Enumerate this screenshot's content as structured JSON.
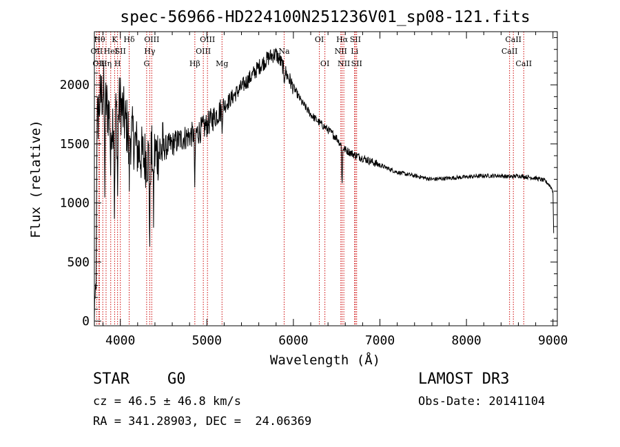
{
  "chart_data": {
    "type": "line",
    "title": "spec-56966-HD224100N251236V01_sp08-121.fits",
    "xlabel": "Wavelength (Å)",
    "ylabel": "Flux (relative)",
    "xlim": [
      3700,
      9050
    ],
    "ylim": [
      -40,
      2450
    ],
    "xticks": [
      4000,
      5000,
      6000,
      7000,
      8000,
      9000
    ],
    "yticks": [
      0,
      500,
      1000,
      1500,
      2000
    ],
    "series": [
      {
        "name": "spectrum",
        "anchors_x": [
          3700,
          3720,
          3730,
          3760,
          3800,
          3850,
          3900,
          3950,
          4000,
          4050,
          4100,
          4150,
          4200,
          4250,
          4300,
          4350,
          4400,
          4500,
          4600,
          4700,
          4800,
          4900,
          5000,
          5100,
          5200,
          5300,
          5400,
          5500,
          5600,
          5700,
          5750,
          5800,
          5850,
          5900,
          6000,
          6100,
          6200,
          6300,
          6400,
          6500,
          6560,
          6600,
          6700,
          6800,
          6900,
          7000,
          7100,
          7200,
          7400,
          7600,
          7800,
          8000,
          8200,
          8400,
          8500,
          8600,
          8700,
          8800,
          8900,
          8950,
          8980,
          9000,
          9010
        ],
        "anchors_y": [
          60,
          300,
          1650,
          1850,
          1950,
          1800,
          1700,
          1750,
          1850,
          1700,
          1600,
          1550,
          1450,
          1400,
          1380,
          1400,
          1420,
          1460,
          1500,
          1540,
          1570,
          1600,
          1660,
          1740,
          1820,
          1900,
          1980,
          2060,
          2150,
          2220,
          2250,
          2260,
          2200,
          2120,
          1980,
          1850,
          1750,
          1680,
          1620,
          1550,
          1480,
          1450,
          1410,
          1380,
          1350,
          1320,
          1290,
          1260,
          1230,
          1200,
          1210,
          1220,
          1230,
          1230,
          1220,
          1230,
          1220,
          1210,
          1190,
          1160,
          1130,
          1100,
          650
        ],
        "dips": [
          {
            "x": 3820,
            "depth": 700
          },
          {
            "x": 3889,
            "depth": 500
          },
          {
            "x": 3934,
            "depth": 900
          },
          {
            "x": 3968,
            "depth": 700
          },
          {
            "x": 4102,
            "depth": 450
          },
          {
            "x": 4340,
            "depth": 750
          },
          {
            "x": 4383,
            "depth": 550
          },
          {
            "x": 4861,
            "depth": 500
          },
          {
            "x": 5175,
            "depth": 120
          },
          {
            "x": 5893,
            "depth": 90
          },
          {
            "x": 6563,
            "depth": 350
          }
        ]
      }
    ],
    "lines": [
      {
        "x": 3727,
        "label": "OII",
        "row": 1
      },
      {
        "x": 3750,
        "label": "OII",
        "row": 2
      },
      {
        "x": 3760,
        "label": "Hθ",
        "row": 0
      },
      {
        "x": 3797,
        "label": "",
        "row": -1
      },
      {
        "x": 3835,
        "label": "Hη",
        "row": 2
      },
      {
        "x": 3889,
        "label": "HeI",
        "row": 1
      },
      {
        "x": 3934,
        "label": "K",
        "row": 0
      },
      {
        "x": 3968,
        "label": "H",
        "row": 2
      },
      {
        "x": 4000,
        "label": "SII",
        "row": 1
      },
      {
        "x": 4102,
        "label": "Hδ",
        "row": 0
      },
      {
        "x": 4304,
        "label": "G",
        "row": 2
      },
      {
        "x": 4340,
        "label": "Hγ",
        "row": 1
      },
      {
        "x": 4363,
        "label": "OIII",
        "row": 0
      },
      {
        "x": 4861,
        "label": "Hβ",
        "row": 2
      },
      {
        "x": 4959,
        "label": "OIII",
        "row": 1
      },
      {
        "x": 5007,
        "label": "OIII",
        "row": 0
      },
      {
        "x": 5175,
        "label": "Mg",
        "row": 2
      },
      {
        "x": 5893,
        "label": "Na",
        "row": 1
      },
      {
        "x": 6300,
        "label": "OI",
        "row": 0
      },
      {
        "x": 6364,
        "label": "OI",
        "row": 2
      },
      {
        "x": 6548,
        "label": "NII",
        "row": 1
      },
      {
        "x": 6563,
        "label": "Hα",
        "row": 0
      },
      {
        "x": 6583,
        "label": "NII",
        "row": 2
      },
      {
        "x": 6707,
        "label": "Li",
        "row": 1
      },
      {
        "x": 6716,
        "label": "SII",
        "row": 0
      },
      {
        "x": 6731,
        "label": "SII",
        "row": 2
      },
      {
        "x": 8498,
        "label": "CaII",
        "row": 1
      },
      {
        "x": 8542,
        "label": "CaII",
        "row": 0
      },
      {
        "x": 8662,
        "label": "CaII",
        "row": 2
      }
    ]
  },
  "info": {
    "object_class": "STAR",
    "subclass": "G0",
    "survey": "LAMOST DR3",
    "cz": "cz = 46.5 ± 46.8 km/s",
    "obs_date": "Obs-Date: 20141104",
    "coords": "RA = 341.28903, DEC =  24.06369"
  },
  "colors": {
    "spectrum": "#000000",
    "line_markers": "#cc0000",
    "axes": "#000000"
  }
}
